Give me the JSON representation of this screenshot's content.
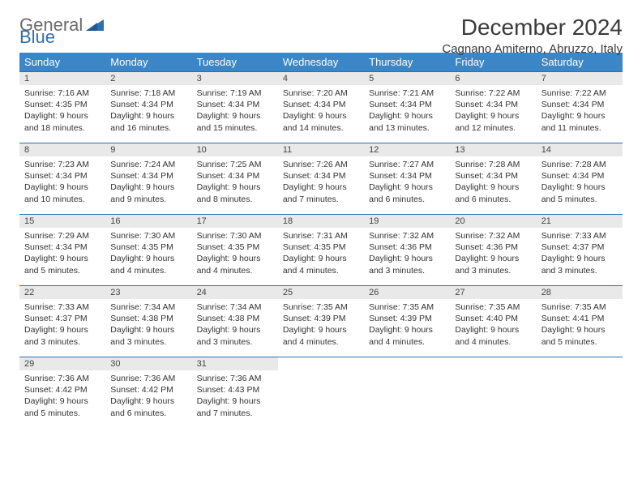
{
  "brand": {
    "word1": "General",
    "word2": "Blue"
  },
  "title": "December 2024",
  "location": "Cagnano Amiterno, Abruzzo, Italy",
  "colors": {
    "header_bg": "#3b86c6",
    "header_text": "#ffffff",
    "daynum_bg": "#e9e9e9",
    "border": "#2f6fb0",
    "logo_gray": "#6b6b6b",
    "logo_blue": "#2f6fb0",
    "text": "#333333"
  },
  "weekdays": [
    "Sunday",
    "Monday",
    "Tuesday",
    "Wednesday",
    "Thursday",
    "Friday",
    "Saturday"
  ],
  "weeks": [
    [
      {
        "n": "1",
        "sr": "7:16 AM",
        "ss": "4:35 PM",
        "dl": "9 hours and 18 minutes."
      },
      {
        "n": "2",
        "sr": "7:18 AM",
        "ss": "4:34 PM",
        "dl": "9 hours and 16 minutes."
      },
      {
        "n": "3",
        "sr": "7:19 AM",
        "ss": "4:34 PM",
        "dl": "9 hours and 15 minutes."
      },
      {
        "n": "4",
        "sr": "7:20 AM",
        "ss": "4:34 PM",
        "dl": "9 hours and 14 minutes."
      },
      {
        "n": "5",
        "sr": "7:21 AM",
        "ss": "4:34 PM",
        "dl": "9 hours and 13 minutes."
      },
      {
        "n": "6",
        "sr": "7:22 AM",
        "ss": "4:34 PM",
        "dl": "9 hours and 12 minutes."
      },
      {
        "n": "7",
        "sr": "7:22 AM",
        "ss": "4:34 PM",
        "dl": "9 hours and 11 minutes."
      }
    ],
    [
      {
        "n": "8",
        "sr": "7:23 AM",
        "ss": "4:34 PM",
        "dl": "9 hours and 10 minutes."
      },
      {
        "n": "9",
        "sr": "7:24 AM",
        "ss": "4:34 PM",
        "dl": "9 hours and 9 minutes."
      },
      {
        "n": "10",
        "sr": "7:25 AM",
        "ss": "4:34 PM",
        "dl": "9 hours and 8 minutes."
      },
      {
        "n": "11",
        "sr": "7:26 AM",
        "ss": "4:34 PM",
        "dl": "9 hours and 7 minutes."
      },
      {
        "n": "12",
        "sr": "7:27 AM",
        "ss": "4:34 PM",
        "dl": "9 hours and 6 minutes."
      },
      {
        "n": "13",
        "sr": "7:28 AM",
        "ss": "4:34 PM",
        "dl": "9 hours and 6 minutes."
      },
      {
        "n": "14",
        "sr": "7:28 AM",
        "ss": "4:34 PM",
        "dl": "9 hours and 5 minutes."
      }
    ],
    [
      {
        "n": "15",
        "sr": "7:29 AM",
        "ss": "4:34 PM",
        "dl": "9 hours and 5 minutes."
      },
      {
        "n": "16",
        "sr": "7:30 AM",
        "ss": "4:35 PM",
        "dl": "9 hours and 4 minutes."
      },
      {
        "n": "17",
        "sr": "7:30 AM",
        "ss": "4:35 PM",
        "dl": "9 hours and 4 minutes."
      },
      {
        "n": "18",
        "sr": "7:31 AM",
        "ss": "4:35 PM",
        "dl": "9 hours and 4 minutes."
      },
      {
        "n": "19",
        "sr": "7:32 AM",
        "ss": "4:36 PM",
        "dl": "9 hours and 3 minutes."
      },
      {
        "n": "20",
        "sr": "7:32 AM",
        "ss": "4:36 PM",
        "dl": "9 hours and 3 minutes."
      },
      {
        "n": "21",
        "sr": "7:33 AM",
        "ss": "4:37 PM",
        "dl": "9 hours and 3 minutes."
      }
    ],
    [
      {
        "n": "22",
        "sr": "7:33 AM",
        "ss": "4:37 PM",
        "dl": "9 hours and 3 minutes."
      },
      {
        "n": "23",
        "sr": "7:34 AM",
        "ss": "4:38 PM",
        "dl": "9 hours and 3 minutes."
      },
      {
        "n": "24",
        "sr": "7:34 AM",
        "ss": "4:38 PM",
        "dl": "9 hours and 3 minutes."
      },
      {
        "n": "25",
        "sr": "7:35 AM",
        "ss": "4:39 PM",
        "dl": "9 hours and 4 minutes."
      },
      {
        "n": "26",
        "sr": "7:35 AM",
        "ss": "4:39 PM",
        "dl": "9 hours and 4 minutes."
      },
      {
        "n": "27",
        "sr": "7:35 AM",
        "ss": "4:40 PM",
        "dl": "9 hours and 4 minutes."
      },
      {
        "n": "28",
        "sr": "7:35 AM",
        "ss": "4:41 PM",
        "dl": "9 hours and 5 minutes."
      }
    ],
    [
      {
        "n": "29",
        "sr": "7:36 AM",
        "ss": "4:42 PM",
        "dl": "9 hours and 5 minutes."
      },
      {
        "n": "30",
        "sr": "7:36 AM",
        "ss": "4:42 PM",
        "dl": "9 hours and 6 minutes."
      },
      {
        "n": "31",
        "sr": "7:36 AM",
        "ss": "4:43 PM",
        "dl": "9 hours and 7 minutes."
      },
      null,
      null,
      null,
      null
    ]
  ],
  "labels": {
    "sunrise": "Sunrise:",
    "sunset": "Sunset:",
    "daylight": "Daylight:"
  }
}
